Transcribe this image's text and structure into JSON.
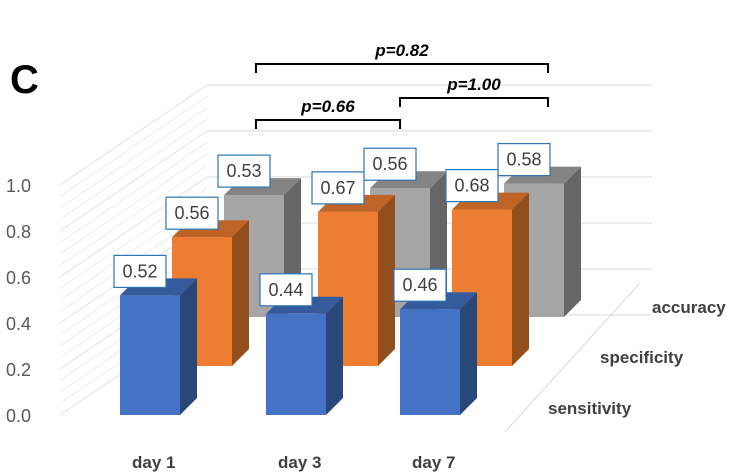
{
  "panel_label": "C",
  "chart_data": {
    "type": "bar",
    "subtype": "3d-clustered-column",
    "categories": [
      "day 1",
      "day 3",
      "day 7"
    ],
    "series": [
      {
        "name": "sensitivity",
        "values": [
          0.52,
          0.44,
          0.46
        ],
        "color": "#4472C4"
      },
      {
        "name": "specificity",
        "values": [
          0.56,
          0.67,
          0.68
        ],
        "color": "#ED7D31"
      },
      {
        "name": "accuracy",
        "values": [
          0.53,
          0.56,
          0.58
        ],
        "color": "#A5A5A5"
      }
    ],
    "data_labels": [
      [
        "0.52",
        "0.44",
        "0.46"
      ],
      [
        "0.56",
        "0.67",
        "0.68"
      ],
      [
        "0.53",
        "0.56",
        "0.58"
      ]
    ],
    "y_ticks": [
      "0.0",
      "0.2",
      "0.4",
      "0.6",
      "0.8",
      "1.0"
    ],
    "ylim": [
      0,
      1.0
    ],
    "grid": true,
    "annotations": [
      {
        "text": "p=0.66",
        "from": "day 1",
        "to": "day 3"
      },
      {
        "text": "p=1.00",
        "from": "day 3",
        "to": "day 7"
      },
      {
        "text": "p=0.82",
        "from": "day 1",
        "to": "day 7"
      }
    ],
    "label_box_border": "#2E75B6"
  }
}
